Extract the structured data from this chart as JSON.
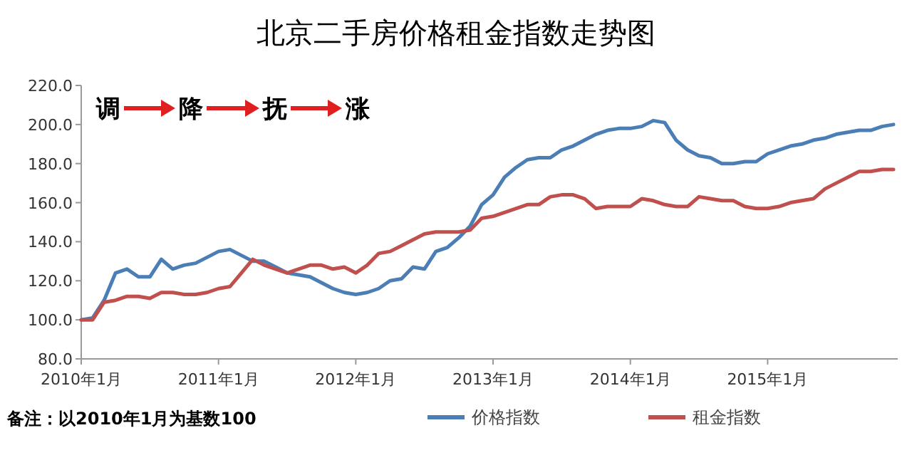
{
  "chart_data": {
    "type": "line",
    "title": "北京二手房价格租金指数走势图",
    "categories": [
      "2010年1月",
      null,
      null,
      null,
      null,
      null,
      null,
      null,
      null,
      null,
      null,
      null,
      "2011年1月",
      null,
      null,
      null,
      null,
      null,
      null,
      null,
      null,
      null,
      null,
      null,
      "2012年1月",
      null,
      null,
      null,
      null,
      null,
      null,
      null,
      null,
      null,
      null,
      null,
      "2013年1月",
      null,
      null,
      null,
      null,
      null,
      null,
      null,
      null,
      null,
      null,
      null,
      "2014年1月",
      null,
      null,
      null,
      null,
      null,
      null,
      null,
      null,
      null,
      null,
      null,
      "2015年1月",
      null,
      null,
      null,
      null,
      null,
      null,
      null,
      null,
      null,
      null,
      null
    ],
    "series": [
      {
        "name": "价格指数",
        "color": "#4a7eb5",
        "values": [
          100,
          101,
          110,
          124,
          126,
          122,
          122,
          131,
          126,
          128,
          129,
          132,
          135,
          136,
          133,
          130,
          130,
          127,
          124,
          123,
          122,
          119,
          116,
          114,
          113,
          114,
          116,
          120,
          121,
          127,
          126,
          135,
          137,
          142,
          148,
          159,
          164,
          173,
          178,
          182,
          183,
          183,
          187,
          189,
          192,
          195,
          197,
          198,
          198,
          199,
          202,
          201,
          192,
          187,
          184,
          183,
          180,
          180,
          181,
          181,
          185,
          187,
          189,
          190,
          192,
          193,
          195,
          196,
          197,
          197,
          199,
          200
        ]
      },
      {
        "name": "租金指数",
        "color": "#c0504d",
        "values": [
          100,
          100,
          109,
          110,
          112,
          112,
          111,
          114,
          114,
          113,
          113,
          114,
          116,
          117,
          124,
          131,
          128,
          126,
          124,
          126,
          128,
          128,
          126,
          127,
          124,
          128,
          134,
          135,
          138,
          141,
          144,
          145,
          145,
          145,
          146,
          152,
          153,
          155,
          157,
          159,
          159,
          163,
          164,
          164,
          162,
          157,
          158,
          158,
          158,
          162,
          161,
          159,
          158,
          158,
          163,
          162,
          161,
          161,
          158,
          157,
          157,
          158,
          160,
          161,
          162,
          167,
          170,
          173,
          176,
          176,
          177,
          177
        ]
      }
    ],
    "ylim": [
      80,
      220
    ],
    "yticks": [
      {
        "value": 80,
        "label": "80.0"
      },
      {
        "value": 100,
        "label": "100.0"
      },
      {
        "value": 120,
        "label": "120.0"
      },
      {
        "value": 140,
        "label": "140.0"
      },
      {
        "value": 160,
        "label": "160.0"
      },
      {
        "value": 180,
        "label": "180.0"
      },
      {
        "value": 200,
        "label": "200.0"
      },
      {
        "value": 220,
        "label": "220.0"
      }
    ],
    "legend": "bottom",
    "marker": "none",
    "line_style": "solid",
    "annotations": [
      "调",
      "降",
      "抚",
      "涨",
      "备注：以2010年1月为基数100"
    ]
  }
}
